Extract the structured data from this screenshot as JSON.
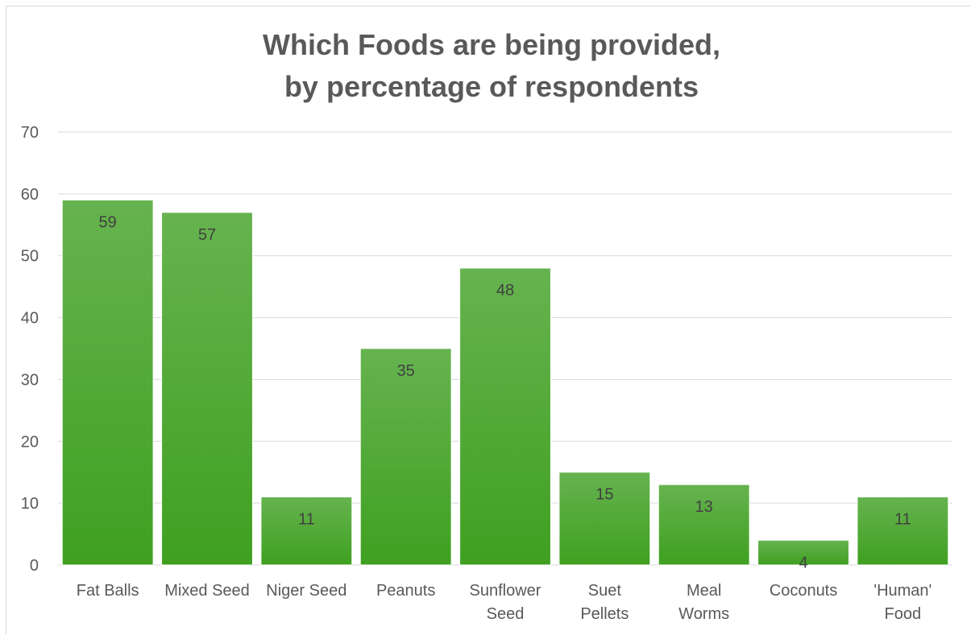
{
  "chart_data": {
    "type": "bar",
    "title": "Which Foods are being provided,\nby percentage of respondents",
    "xlabel": "",
    "ylabel": "",
    "categories": [
      [
        "Fat Balls"
      ],
      [
        "Mixed Seed"
      ],
      [
        "Niger Seed"
      ],
      [
        "Peanuts"
      ],
      [
        "Sunflower",
        "Seed"
      ],
      [
        "Suet",
        "Pellets"
      ],
      [
        "Meal",
        "Worms"
      ],
      [
        "Coconuts"
      ],
      [
        "'Human'",
        "Food"
      ]
    ],
    "values": [
      59,
      57,
      11,
      35,
      48,
      15,
      13,
      4,
      11
    ],
    "data_labels": [
      "59",
      "57",
      "11",
      "35",
      "48",
      "15",
      "13",
      "4",
      "11"
    ],
    "ylim": [
      0,
      70
    ],
    "yticks": [
      "0",
      "10",
      "20",
      "30",
      "40",
      "50",
      "60",
      "70"
    ],
    "grid": true,
    "legend": "none",
    "colors": {
      "bar_top": "#66b34f",
      "bar_bottom": "#3fa020",
      "gridline": "#d9d9d9",
      "text": "#595959"
    }
  }
}
